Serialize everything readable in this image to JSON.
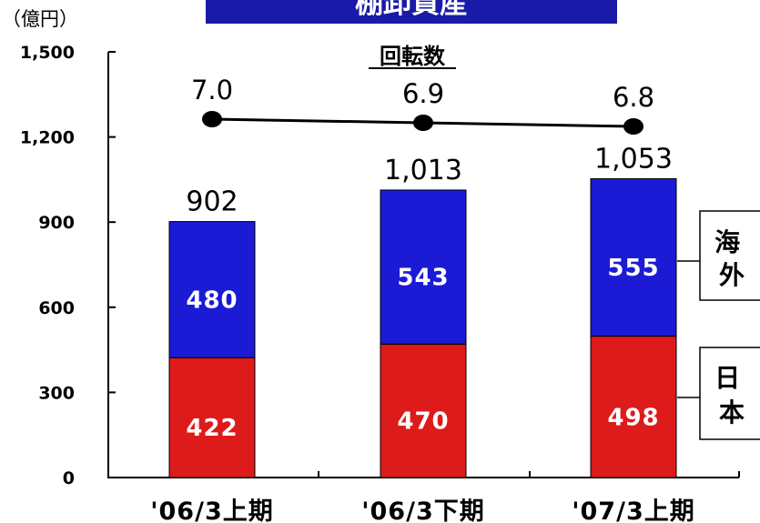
{
  "header": {
    "title": "棚卸資産",
    "unit": "（億円）",
    "subtitle": "回転数"
  },
  "legend": {
    "overseas": "海\n外",
    "japan": "日\n本"
  },
  "colors": {
    "overseas": "#1b1bd6",
    "japan": "#dd1b1b",
    "title_bg": "#1a1aa8"
  },
  "chart_data": {
    "type": "bar",
    "stacked": true,
    "categories": [
      "'06/3上期",
      "'06/3下期",
      "'07/3上期"
    ],
    "series": [
      {
        "name": "日本",
        "values": [
          422,
          470,
          498
        ]
      },
      {
        "name": "海外",
        "values": [
          480,
          543,
          555
        ]
      }
    ],
    "totals": [
      "902",
      "1,013",
      "1,053"
    ],
    "segment_labels": [
      [
        "422",
        "470",
        "498"
      ],
      [
        "480",
        "543",
        "555"
      ]
    ],
    "turnover": {
      "name": "回転数",
      "values": [
        7.0,
        6.9,
        6.8
      ],
      "labels": [
        "7.0",
        "6.9",
        "6.8"
      ]
    },
    "yticks": [
      "0",
      "300",
      "600",
      "900",
      "1,200",
      "1,500"
    ],
    "ytick_values": [
      0,
      300,
      600,
      900,
      1200,
      1500
    ],
    "ylim": [
      0,
      1500
    ],
    "ylabel": "（億円）",
    "title": "棚卸資産",
    "grid": false
  }
}
